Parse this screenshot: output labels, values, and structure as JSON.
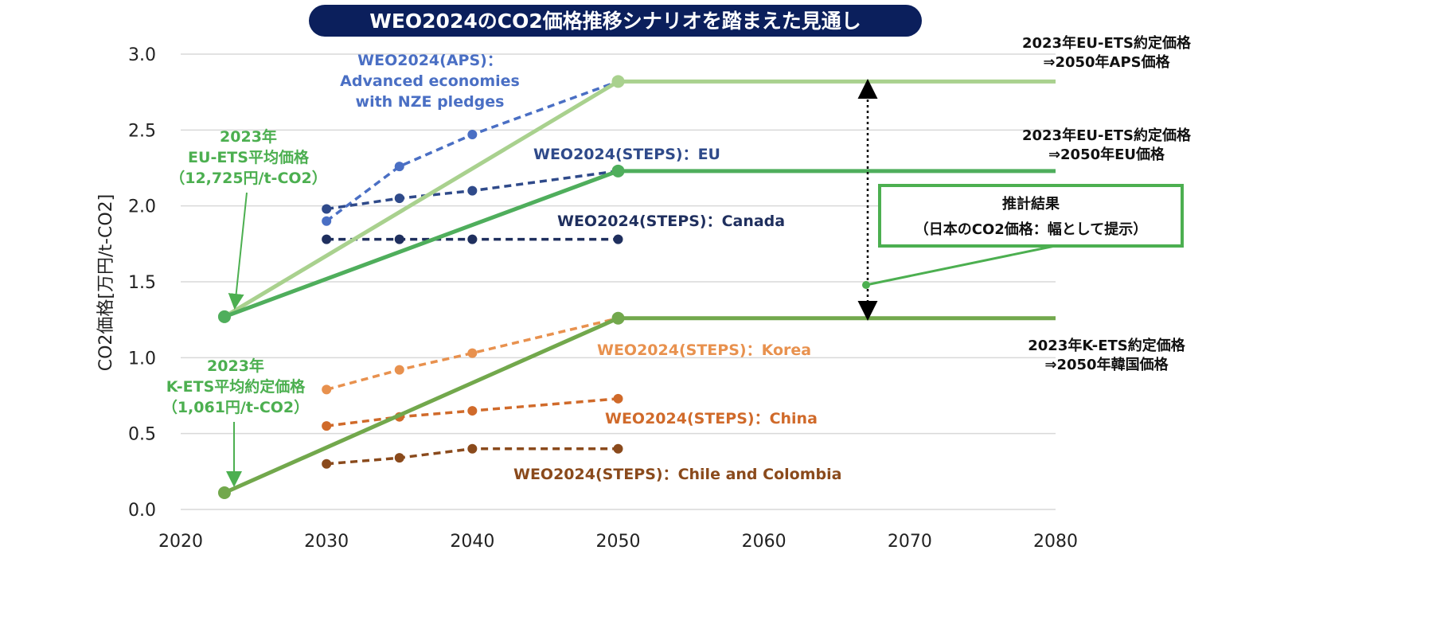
{
  "chart_data": {
    "type": "line",
    "title": "WEO2024のCO2価格推移シナリオを踏まえた見通し",
    "xlabel": "",
    "ylabel": "CO2価格[万円/t-CO2]",
    "xlim": [
      2020,
      2080
    ],
    "ylim": [
      0,
      3.0
    ],
    "xticks": [
      "2020",
      "2030",
      "2040",
      "2050",
      "2060",
      "2070",
      "2080"
    ],
    "yticks": [
      "0.0",
      "0.5",
      "1.0",
      "1.5",
      "2.0",
      "2.5",
      "3.0"
    ],
    "grid": "horizontal",
    "series": [
      {
        "name": "WEO2024(APS) : Advanced economies with NZE pledges",
        "style": "dashed",
        "color": "#4a6fc4",
        "x": [
          2030,
          2035,
          2040,
          2050
        ],
        "y": [
          1.9,
          2.26,
          2.47,
          2.82
        ]
      },
      {
        "name": "WEO2024(STEPS) : EU",
        "style": "dashed",
        "color": "#2f4a8a",
        "x": [
          2030,
          2035,
          2040,
          2050
        ],
        "y": [
          1.98,
          2.05,
          2.1,
          2.23
        ]
      },
      {
        "name": "WEO2024(STEPS) : Canada",
        "style": "dashed",
        "color": "#1f2f5e",
        "x": [
          2030,
          2035,
          2040,
          2050
        ],
        "y": [
          1.78,
          1.78,
          1.78,
          1.78
        ]
      },
      {
        "name": "WEO2024(STEPS) : Korea",
        "style": "dashed",
        "color": "#e8914e",
        "x": [
          2030,
          2035,
          2040,
          2050
        ],
        "y": [
          0.79,
          0.92,
          1.03,
          1.26
        ]
      },
      {
        "name": "WEO2024(STEPS) : China",
        "style": "dashed",
        "color": "#d06a2a",
        "x": [
          2030,
          2035,
          2040,
          2050
        ],
        "y": [
          0.55,
          0.61,
          0.65,
          0.73
        ]
      },
      {
        "name": "WEO2024(STEPS) : Chile and Colombia",
        "style": "dashed",
        "color": "#8a4a1c",
        "x": [
          2030,
          2035,
          2040,
          2050
        ],
        "y": [
          0.3,
          0.34,
          0.4,
          0.4
        ]
      },
      {
        "name": "2023年EU-ETS約定価格⇒2050年APS価格",
        "style": "solid",
        "color": "#a9d18e",
        "x": [
          2023,
          2050,
          2080
        ],
        "y": [
          1.27,
          2.82,
          2.82
        ]
      },
      {
        "name": "2023年EU-ETS約定価格⇒2050年EU価格",
        "style": "solid",
        "color": "#4fae5c",
        "x": [
          2023,
          2050,
          2080
        ],
        "y": [
          1.27,
          2.23,
          2.23
        ]
      },
      {
        "name": "2023年K-ETS約定価格⇒2050年韓国価格",
        "style": "solid",
        "color": "#72a84c",
        "x": [
          2023,
          2050,
          2080
        ],
        "y": [
          0.11,
          1.26,
          1.26
        ]
      }
    ],
    "annotations": {
      "aps": [
        "WEO2024(APS)：",
        "Advanced economies",
        "with NZE pledges"
      ],
      "eu": "WEO2024(STEPS)：EU",
      "canada": "WEO2024(STEPS)：Canada",
      "korea": "WEO2024(STEPS)：Korea",
      "china": "WEO2024(STEPS)：China",
      "chile": "WEO2024(STEPS)：Chile and Colombia",
      "eu_ets": [
        "2023年",
        "EU-ETS平均価格",
        "（12,725円/t-CO2）"
      ],
      "k_ets": [
        "2023年",
        "K-ETS平均約定価格",
        "（1,061円/t-CO2）"
      ],
      "right_aps": [
        "2023年EU-ETS約定価格",
        "⇒2050年APS価格"
      ],
      "right_eu": [
        "2023年EU-ETS約定価格",
        "⇒2050年EU価格"
      ],
      "right_korea": [
        "2023年K-ETS約定価格",
        "⇒2050年韓国価格"
      ],
      "result_box": [
        "推計結果",
        "（日本のCO2価格：幅として提示）"
      ]
    },
    "colors": {
      "title_bg": "#0b1f5c",
      "annotation_green": "#4caf50"
    }
  }
}
